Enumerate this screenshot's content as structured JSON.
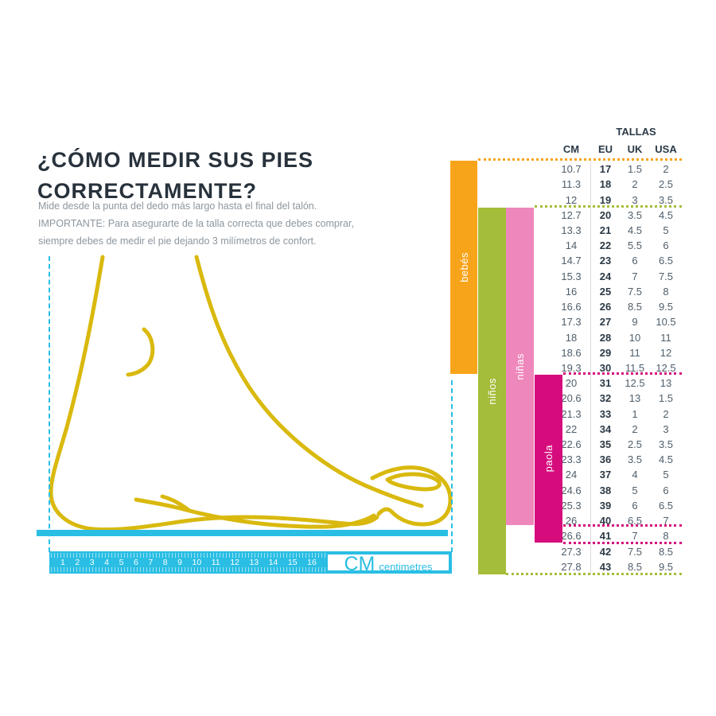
{
  "colors": {
    "cyan": "#2abee4",
    "yellow": "#d9b90e",
    "orange": "#f8a41b",
    "green": "#a4bd3a",
    "pink": "#ee87bb",
    "magenta": "#d60c7d",
    "title_text": "#28323c",
    "body_text": "#8d969e",
    "table_text": "#4f5e6a",
    "table_text_bold": "#2b3945"
  },
  "left_panel": {
    "title_line1": "¿CÓMO MEDIR SUS PIES",
    "title_line2": "CORRECTAMENTE?",
    "instruction1": "Mide desde la punta del dedo más largo hasta el final del talón.",
    "instruction2": "IMPORTANTE: Para asegurarte de la talla correcta que debes comprar, siempre debes de medir el pie dejando 3 milímetros de confort.",
    "ruler": {
      "numbers": [
        "1",
        "2",
        "3",
        "4",
        "5",
        "6",
        "7",
        "8",
        "9",
        "10",
        "11",
        "12",
        "13",
        "14",
        "15",
        "16"
      ],
      "unit_label": "CM",
      "unit_sublabel": "centimetres"
    }
  },
  "size_chart": {
    "title": "TALLAS",
    "columns": [
      "CM",
      "EU",
      "UK",
      "USA"
    ],
    "groups": [
      {
        "label": "bebés",
        "color": "#f8a41b",
        "eu_range": "17-30"
      },
      {
        "label": "niños",
        "color": "#a4bd3a",
        "eu_range": "20-43"
      },
      {
        "label": "niñas",
        "color": "#ee87bb",
        "eu_range": "20-40"
      },
      {
        "label": "paola",
        "color": "#d60c7d",
        "eu_range": "31-41"
      }
    ],
    "rows": [
      [
        "10.7",
        "17",
        "1.5",
        "2"
      ],
      [
        "11.3",
        "18",
        "2",
        "2.5"
      ],
      [
        "12",
        "19",
        "3",
        "3.5"
      ],
      [
        "12.7",
        "20",
        "3.5",
        "4.5"
      ],
      [
        "13.3",
        "21",
        "4.5",
        "5"
      ],
      [
        "14",
        "22",
        "5.5",
        "6"
      ],
      [
        "14.7",
        "23",
        "6",
        "6.5"
      ],
      [
        "15.3",
        "24",
        "7",
        "7.5"
      ],
      [
        "16",
        "25",
        "7.5",
        "8"
      ],
      [
        "16.6",
        "26",
        "8.5",
        "9.5"
      ],
      [
        "17.3",
        "27",
        "9",
        "10.5"
      ],
      [
        "18",
        "28",
        "10",
        "11"
      ],
      [
        "18.6",
        "29",
        "11",
        "12"
      ],
      [
        "19.3",
        "30",
        "11.5",
        "12.5"
      ],
      [
        "20",
        "31",
        "12.5",
        "13"
      ],
      [
        "20.6",
        "32",
        "13",
        "1.5"
      ],
      [
        "21.3",
        "33",
        "1",
        "2"
      ],
      [
        "22",
        "34",
        "2",
        "3"
      ],
      [
        "22.6",
        "35",
        "2.5",
        "3.5"
      ],
      [
        "23.3",
        "36",
        "3.5",
        "4.5"
      ],
      [
        "24",
        "37",
        "4",
        "5"
      ],
      [
        "24.6",
        "38",
        "5",
        "6"
      ],
      [
        "25.3",
        "39",
        "6",
        "6.5"
      ],
      [
        "26",
        "40",
        "6.5",
        "7"
      ],
      [
        "26.6",
        "41",
        "7",
        "8"
      ],
      [
        "27.3",
        "42",
        "7.5",
        "8.5"
      ],
      [
        "27.8",
        "43",
        "8.5",
        "9.5"
      ]
    ]
  }
}
